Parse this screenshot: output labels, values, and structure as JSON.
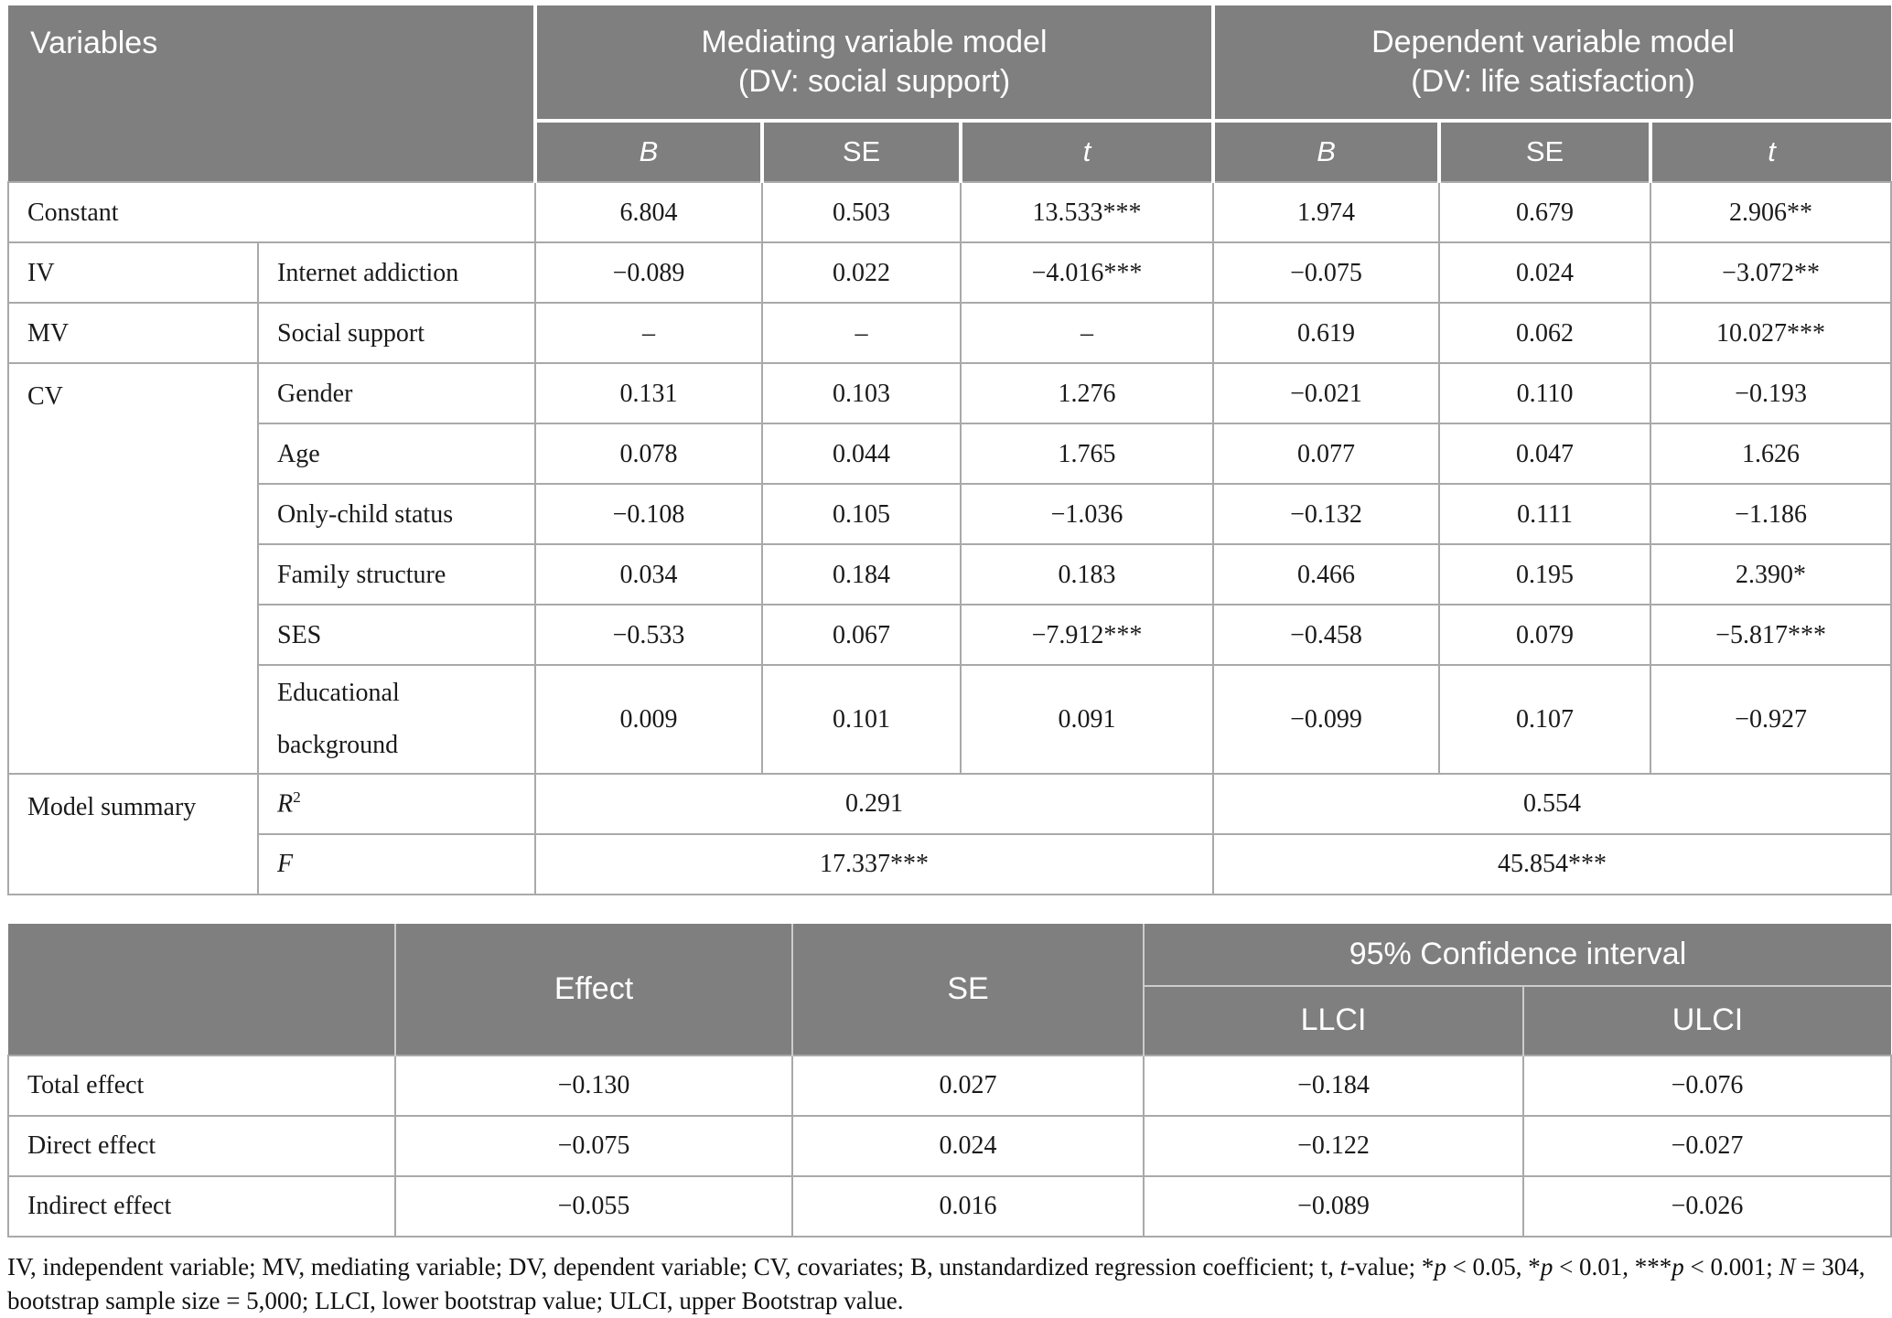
{
  "colors": {
    "header_bg": "#7f7f7f",
    "header_text": "#ffffff",
    "grid_line": "#a9a9a9",
    "body_text": "#1a1a1a"
  },
  "table1": {
    "corner_label": "Variables",
    "groups": [
      {
        "title": "Mediating variable model",
        "subtitle": "(DV: social support)"
      },
      {
        "title": "Dependent variable model",
        "subtitle": "(DV: life satisfaction)"
      }
    ],
    "subcols": {
      "b": "B",
      "se": "SE",
      "t": "t"
    },
    "rows": [
      {
        "cat": "Constant",
        "name": "",
        "cells": [
          "6.804",
          "0.503",
          "13.533***",
          "1.974",
          "0.679",
          "2.906**"
        ]
      },
      {
        "cat": "IV",
        "name": "Internet addiction",
        "cells": [
          "−0.089",
          "0.022",
          "−4.016***",
          "−0.075",
          "0.024",
          "−3.072**"
        ]
      },
      {
        "cat": "MV",
        "name": "Social support",
        "cells": [
          "–",
          "–",
          "–",
          "0.619",
          "0.062",
          "10.027***"
        ]
      },
      {
        "cat": "CV",
        "name": "Gender",
        "cells": [
          "0.131",
          "0.103",
          "1.276",
          "−0.021",
          "0.110",
          "−0.193"
        ]
      },
      {
        "cat": "",
        "name": "Age",
        "cells": [
          "0.078",
          "0.044",
          "1.765",
          "0.077",
          "0.047",
          "1.626"
        ]
      },
      {
        "cat": "",
        "name": "Only-child status",
        "cells": [
          "−0.108",
          "0.105",
          "−1.036",
          "−0.132",
          "0.111",
          "−1.186"
        ]
      },
      {
        "cat": "",
        "name": "Family structure",
        "cells": [
          "0.034",
          "0.184",
          "0.183",
          "0.466",
          "0.195",
          "2.390*"
        ]
      },
      {
        "cat": "",
        "name": "SES",
        "cells": [
          "−0.533",
          "0.067",
          "−7.912***",
          "−0.458",
          "0.079",
          "−5.817***"
        ]
      },
      {
        "cat": "",
        "name": "Educational background",
        "cells": [
          "0.009",
          "0.101",
          "0.091",
          "−0.099",
          "0.107",
          "−0.927"
        ]
      }
    ],
    "summary": {
      "label": "Model summary",
      "r2_label": "R",
      "r2_sup": "2",
      "r2_values": [
        "0.291",
        "0.554"
      ],
      "f_label": "F",
      "f_values": [
        "17.337***",
        "45.854***"
      ]
    }
  },
  "table2": {
    "headers": {
      "effect": "Effect",
      "se": "SE",
      "ci": "95% Confidence interval",
      "llci": "LLCI",
      "ulci": "ULCI"
    },
    "rows": [
      {
        "label": "Total effect",
        "cells": [
          "−0.130",
          "0.027",
          "−0.184",
          "−0.076"
        ]
      },
      {
        "label": "Direct effect",
        "cells": [
          "−0.075",
          "0.024",
          "−0.122",
          "−0.027"
        ]
      },
      {
        "label": "Indirect effect",
        "cells": [
          "−0.055",
          "0.016",
          "−0.089",
          "−0.026"
        ]
      }
    ]
  },
  "footnote": {
    "segments": [
      {
        "t": "IV, independent variable; MV, mediating variable; DV, dependent variable; CV, covariates; B, unstandardized regression coefficient; t, "
      },
      {
        "t": "t",
        "i": true
      },
      {
        "t": "-value; *"
      },
      {
        "t": "p",
        "i": true
      },
      {
        "t": " < 0.05, *"
      },
      {
        "t": "p",
        "i": true
      },
      {
        "t": " < 0.01, ***"
      },
      {
        "t": "p",
        "i": true
      },
      {
        "t": " < 0.001; "
      },
      {
        "t": "N",
        "i": true
      },
      {
        "t": " = 304, bootstrap sample size = 5,000; LLCI, lower bootstrap value; ULCI, upper Bootstrap value."
      }
    ]
  }
}
